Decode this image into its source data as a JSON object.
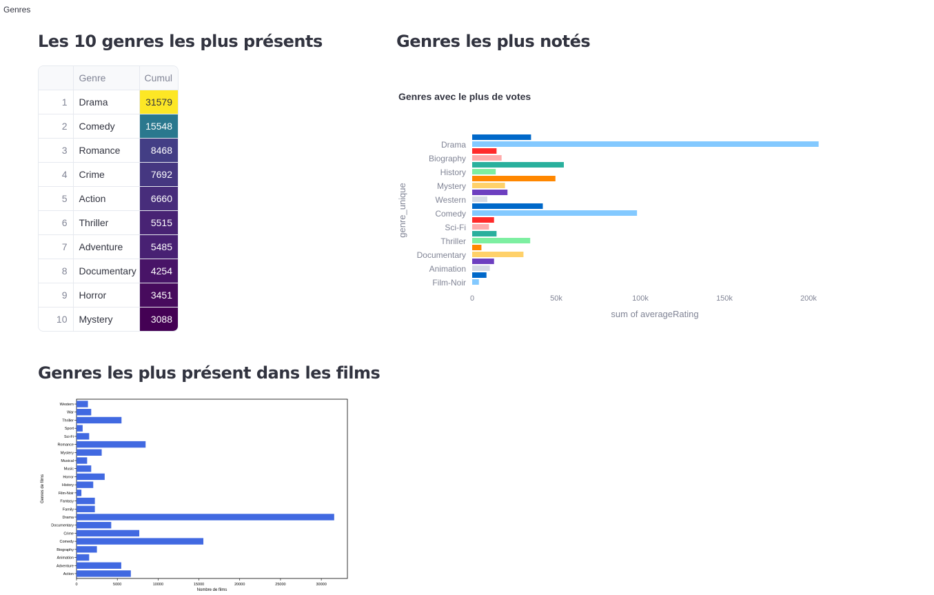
{
  "page_label": "Genres",
  "sections": {
    "top10_title": "Les 10 genres les plus présents",
    "rated_title": "Genres les plus notés",
    "films_title": "Genres les plus présent dans les films"
  },
  "table": {
    "columns": [
      "",
      "Genre",
      "Cumul"
    ],
    "rows": [
      {
        "index": "1",
        "genre": "Drama",
        "cumul": "31579",
        "bg": "#fde725",
        "fg": "#31333f"
      },
      {
        "index": "2",
        "genre": "Comedy",
        "cumul": "15548",
        "bg": "#2a788e",
        "fg": "#ffffff"
      },
      {
        "index": "3",
        "genre": "Romance",
        "cumul": "8468",
        "bg": "#433e85",
        "fg": "#ffffff"
      },
      {
        "index": "4",
        "genre": "Crime",
        "cumul": "7692",
        "bg": "#453781",
        "fg": "#ffffff"
      },
      {
        "index": "5",
        "genre": "Action",
        "cumul": "6660",
        "bg": "#472d7b",
        "fg": "#ffffff"
      },
      {
        "index": "6",
        "genre": "Thriller",
        "cumul": "5515",
        "bg": "#482374",
        "fg": "#ffffff"
      },
      {
        "index": "7",
        "genre": "Adventure",
        "cumul": "5485",
        "bg": "#482173",
        "fg": "#ffffff"
      },
      {
        "index": "8",
        "genre": "Documentary",
        "cumul": "4254",
        "bg": "#481467",
        "fg": "#ffffff"
      },
      {
        "index": "9",
        "genre": "Horror",
        "cumul": "3451",
        "bg": "#470b5d",
        "fg": "#ffffff"
      },
      {
        "index": "10",
        "genre": "Mystery",
        "cumul": "3088",
        "bg": "#440154",
        "fg": "#ffffff"
      }
    ]
  },
  "chart_data": [
    {
      "type": "bar",
      "orientation": "horizontal",
      "title": "Genres avec le plus de votes",
      "ylabel": "genre_unique",
      "xlabel": "sum of averageRating",
      "x_ticks": [
        "0",
        "50k",
        "100k",
        "150k",
        "200k"
      ],
      "x_tick_values": [
        0,
        50000,
        100000,
        150000,
        200000
      ],
      "xlim": [
        0,
        215000
      ],
      "categories": [
        "Drama",
        "Biography",
        "History",
        "Mystery",
        "Western",
        "Comedy",
        "Sci-Fi",
        "Thriller",
        "Documentary",
        "Animation",
        "Film-Noir"
      ],
      "series": [
        {
          "values": [
            35000,
            14500,
            54500,
            49500,
            21000,
            42000,
            13000,
            14500,
            5500,
            13000,
            8500
          ],
          "colors": [
            "#0068c9",
            "#ff2b2b",
            "#29b09d",
            "#ff8700",
            "#6d3fc0",
            "#0068c9",
            "#ff2b2b",
            "#29b09d",
            "#ff8700",
            "#6d3fc0",
            "#0068c9"
          ]
        },
        {
          "values": [
            206000,
            17500,
            14000,
            19500,
            9000,
            98000,
            10000,
            34500,
            30500,
            10500,
            4000
          ],
          "colors": [
            "#83c9ff",
            "#ffabab",
            "#7defa1",
            "#ffd16a",
            "#d5dae5",
            "#83c9ff",
            "#ffabab",
            "#7defa1",
            "#ffd16a",
            "#d5dae5",
            "#83c9ff"
          ]
        }
      ],
      "grid": false
    },
    {
      "type": "bar",
      "orientation": "horizontal",
      "xlabel": "Nombre de films",
      "ylabel": "Genres de films",
      "x_ticks": [
        "0",
        "5000",
        "10000",
        "15000",
        "20000",
        "25000",
        "30000"
      ],
      "x_tick_values": [
        0,
        5000,
        10000,
        15000,
        20000,
        25000,
        30000
      ],
      "xlim": [
        0,
        33200
      ],
      "categories": [
        "Action",
        "Adventure",
        "Animation",
        "Biography",
        "Comedy",
        "Crime",
        "Documentary",
        "Drama",
        "Family",
        "Fantasy",
        "Film-Noir",
        "History",
        "Horror",
        "Music",
        "Musical",
        "Mystery",
        "Romance",
        "Sci-Fi",
        "Sport",
        "Thriller",
        "War",
        "Western"
      ],
      "values": [
        6660,
        5485,
        1550,
        2500,
        15548,
        7692,
        4254,
        31579,
        2250,
        2250,
        600,
        2050,
        3451,
        1800,
        1300,
        3088,
        8468,
        1550,
        750,
        5515,
        1800,
        1400
      ],
      "color": "#4169e1"
    }
  ]
}
